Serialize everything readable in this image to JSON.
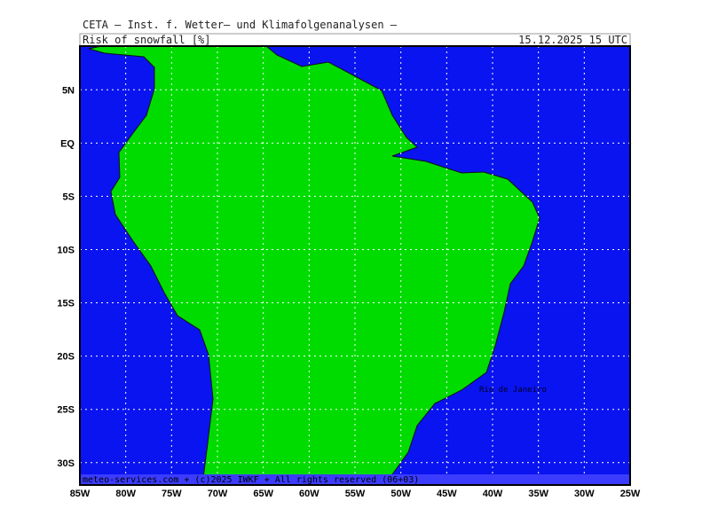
{
  "header": {
    "title": "CETA — Inst. f. Wetter— und Klimafolgenanalysen —",
    "variable": "Risk_of_snowfall_[%]",
    "valid": "15.12.2025  15 UTC"
  },
  "map": {
    "lonlim": [
      -85,
      -25
    ],
    "latlim": [
      9.1,
      -32.1
    ],
    "lon_ticks": [
      {
        "value": -85,
        "label": "85W"
      },
      {
        "value": -80,
        "label": "80W"
      },
      {
        "value": -75,
        "label": "75W"
      },
      {
        "value": -70,
        "label": "70W"
      },
      {
        "value": -65,
        "label": "65W"
      },
      {
        "value": -60,
        "label": "60W"
      },
      {
        "value": -55,
        "label": "55W"
      },
      {
        "value": -50,
        "label": "50W"
      },
      {
        "value": -45,
        "label": "45W"
      },
      {
        "value": -40,
        "label": "40W"
      },
      {
        "value": -35,
        "label": "35W"
      },
      {
        "value": -30,
        "label": "30W"
      },
      {
        "value": -25,
        "label": "25W"
      }
    ],
    "lat_ticks": [
      {
        "value": 5,
        "label": "5N"
      },
      {
        "value": 0,
        "label": "EQ"
      },
      {
        "value": -5,
        "label": "5S"
      },
      {
        "value": -10,
        "label": "10S"
      },
      {
        "value": -15,
        "label": "15S"
      },
      {
        "value": -20,
        "label": "20S"
      },
      {
        "value": -25,
        "label": "25S"
      },
      {
        "value": -30,
        "label": "30S"
      }
    ],
    "places": [
      {
        "name": "Rio de Janeiro"
      }
    ]
  },
  "footer": "meteo-services.com + (c)2025 IWKF + All rights reserved (06+03)"
}
